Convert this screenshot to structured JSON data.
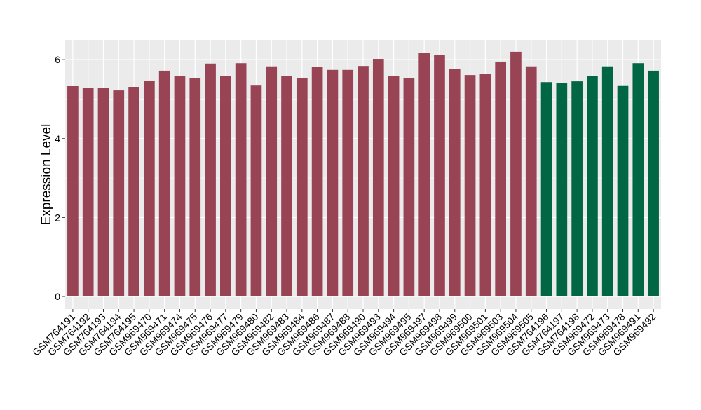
{
  "chart_data": {
    "type": "bar",
    "y_label": "Expression Level",
    "categories": [
      "GSM764191",
      "GSM764192",
      "GSM764193",
      "GSM764194",
      "GSM764195",
      "GSM969470",
      "GSM969471",
      "GSM969474",
      "GSM969475",
      "GSM969476",
      "GSM969477",
      "GSM969479",
      "GSM969480",
      "GSM969482",
      "GSM969483",
      "GSM969484",
      "GSM969486",
      "GSM969487",
      "GSM969488",
      "GSM969490",
      "GSM969493",
      "GSM969494",
      "GSM969495",
      "GSM969497",
      "GSM969498",
      "GSM969499",
      "GSM969500",
      "GSM969501",
      "GSM969503",
      "GSM969504",
      "GSM969505",
      "GSM764196",
      "GSM764197",
      "GSM764198",
      "GSM969472",
      "GSM969473",
      "GSM969478",
      "GSM969491",
      "GSM969492"
    ],
    "values": [
      5.33,
      5.29,
      5.29,
      5.22,
      5.31,
      5.47,
      5.72,
      5.59,
      5.54,
      5.9,
      5.59,
      5.91,
      5.36,
      5.83,
      5.59,
      5.54,
      5.81,
      5.74,
      5.74,
      5.84,
      6.02,
      5.59,
      5.54,
      6.18,
      6.11,
      5.77,
      5.61,
      5.63,
      5.95,
      6.2,
      5.83,
      5.43,
      5.4,
      5.45,
      5.58,
      5.83,
      5.35,
      5.91,
      5.72
    ],
    "colors": [
      "#994455",
      "#994455",
      "#994455",
      "#994455",
      "#994455",
      "#994455",
      "#994455",
      "#994455",
      "#994455",
      "#994455",
      "#994455",
      "#994455",
      "#994455",
      "#994455",
      "#994455",
      "#994455",
      "#994455",
      "#994455",
      "#994455",
      "#994455",
      "#994455",
      "#994455",
      "#994455",
      "#994455",
      "#994455",
      "#994455",
      "#994455",
      "#994455",
      "#994455",
      "#994455",
      "#994455",
      "#006644",
      "#006644",
      "#006644",
      "#006644",
      "#006644",
      "#006644",
      "#006644",
      "#006644"
    ],
    "ylim": [
      -0.32,
      6.5
    ],
    "yticks": [
      0,
      2,
      4,
      6
    ],
    "grid": true
  }
}
